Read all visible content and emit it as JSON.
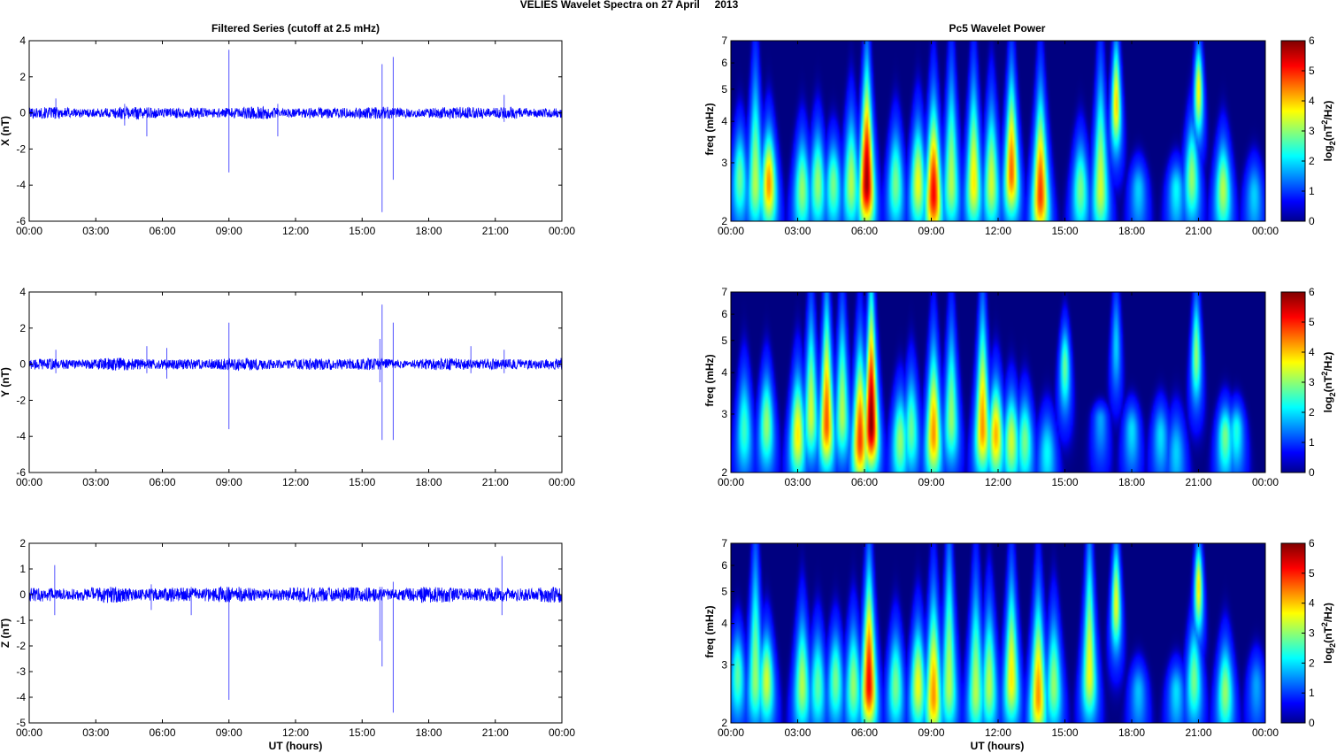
{
  "figure": {
    "suptitle": "VELIES Wavelet Spectra on 27 April     2013",
    "left_title": "Filtered Series (cutoff at 2.5 mHz)",
    "right_title": "Pc5 Wavelet Power",
    "xlabel": "UT (hours)"
  },
  "colors": {
    "trace": "#0000ff",
    "background": "#00008f",
    "colormap": "jet"
  },
  "chart_data": [
    {
      "type": "line",
      "panel": "X",
      "ylabel": "X (nT)",
      "ylim": [
        -6,
        4
      ],
      "yticks": [
        "-6",
        "-4",
        "-2",
        "0",
        "2",
        "4"
      ],
      "xlim": [
        0,
        24
      ],
      "xticks": [
        "00:00",
        "03:00",
        "06:00",
        "09:00",
        "12:00",
        "15:00",
        "18:00",
        "21:00",
        "00:00"
      ],
      "noise_amplitude_nT": 0.2,
      "spikes": [
        {
          "t": 1.2,
          "max": 0.8,
          "min": -0.3
        },
        {
          "t": 4.3,
          "max": 0.5,
          "min": -0.7
        },
        {
          "t": 5.3,
          "max": 0.3,
          "min": -1.3
        },
        {
          "t": 9.0,
          "max": 3.5,
          "min": -3.3
        },
        {
          "t": 11.2,
          "max": 0.5,
          "min": -1.3
        },
        {
          "t": 15.9,
          "max": 2.7,
          "min": -5.5
        },
        {
          "t": 16.4,
          "max": 3.1,
          "min": -3.7
        },
        {
          "t": 21.4,
          "max": 1.0,
          "min": -0.5
        }
      ]
    },
    {
      "type": "line",
      "panel": "Y",
      "ylabel": "Y (nT)",
      "ylim": [
        -6,
        4
      ],
      "yticks": [
        "-6",
        "-4",
        "-2",
        "0",
        "2",
        "4"
      ],
      "xlim": [
        0,
        24
      ],
      "xticks": [
        "00:00",
        "03:00",
        "06:00",
        "09:00",
        "12:00",
        "15:00",
        "18:00",
        "21:00",
        "00:00"
      ],
      "noise_amplitude_nT": 0.2,
      "spikes": [
        {
          "t": 1.2,
          "max": 0.8,
          "min": -0.5
        },
        {
          "t": 5.3,
          "max": 1.0,
          "min": -0.5
        },
        {
          "t": 6.2,
          "max": 0.9,
          "min": -0.8
        },
        {
          "t": 9.0,
          "max": 2.3,
          "min": -3.6
        },
        {
          "t": 15.8,
          "max": 1.4,
          "min": -1.0
        },
        {
          "t": 15.9,
          "max": 3.3,
          "min": -4.2
        },
        {
          "t": 16.4,
          "max": 2.3,
          "min": -4.2
        },
        {
          "t": 19.9,
          "max": 1.0,
          "min": -0.5
        },
        {
          "t": 21.4,
          "max": 0.8,
          "min": -0.5
        }
      ]
    },
    {
      "type": "line",
      "panel": "Z",
      "ylabel": "Z (nT)",
      "ylim": [
        -5,
        2
      ],
      "yticks": [
        "-5",
        "-4",
        "-3",
        "-2",
        "-1",
        "0",
        "1",
        "2"
      ],
      "xlim": [
        0,
        24
      ],
      "xticks": [
        "00:00",
        "03:00",
        "06:00",
        "09:00",
        "12:00",
        "15:00",
        "18:00",
        "21:00",
        "00:00"
      ],
      "noise_amplitude_nT": 0.18,
      "spikes": [
        {
          "t": 1.15,
          "max": 1.15,
          "min": -0.8
        },
        {
          "t": 5.5,
          "max": 0.4,
          "min": -0.6
        },
        {
          "t": 7.3,
          "max": 0.3,
          "min": -0.8
        },
        {
          "t": 9.0,
          "max": 0.3,
          "min": -4.1
        },
        {
          "t": 15.8,
          "max": 0.3,
          "min": -1.8
        },
        {
          "t": 15.9,
          "max": 0.3,
          "min": -2.8
        },
        {
          "t": 16.4,
          "max": 0.5,
          "min": -4.6
        },
        {
          "t": 21.3,
          "max": 1.5,
          "min": -0.8
        }
      ]
    },
    {
      "type": "heatmap",
      "panel": "X",
      "ylabel": "freq (mHz)",
      "yscale": "log",
      "ylim": [
        2,
        7
      ],
      "yticks": [
        "2",
        "3",
        "4",
        "5",
        "6",
        "7"
      ],
      "xlim": [
        0,
        24
      ],
      "xticks": [
        "00:00",
        "03:00",
        "06:00",
        "09:00",
        "12:00",
        "15:00",
        "18:00",
        "21:00",
        "00:00"
      ],
      "colorbar": {
        "label": "log2(nT^2/Hz)",
        "range": [
          0,
          6
        ],
        "ticks": [
          "0",
          "1",
          "2",
          "3",
          "4",
          "5",
          "6"
        ]
      },
      "blobs": [
        {
          "t": 0.4,
          "f": 2.7,
          "p": 2.5,
          "fmax": 3.8
        },
        {
          "t": 1.1,
          "f": 2.6,
          "p": 3.0,
          "fmax": 5.5
        },
        {
          "t": 1.7,
          "f": 2.6,
          "p": 4.2,
          "fmax": 3.8
        },
        {
          "t": 3.2,
          "f": 2.5,
          "p": 2.8,
          "fmax": 3.6
        },
        {
          "t": 3.9,
          "f": 2.6,
          "p": 2.8,
          "fmax": 3.8
        },
        {
          "t": 4.6,
          "f": 2.6,
          "p": 2.6,
          "fmax": 3.5
        },
        {
          "t": 5.4,
          "f": 2.6,
          "p": 3.0,
          "fmax": 4.2
        },
        {
          "t": 6.1,
          "f": 2.6,
          "p": 5.8,
          "fmax": 5.8
        },
        {
          "t": 7.4,
          "f": 2.6,
          "p": 2.6,
          "fmax": 3.8
        },
        {
          "t": 8.4,
          "f": 2.6,
          "p": 3.4,
          "fmax": 4.0
        },
        {
          "t": 9.1,
          "f": 2.4,
          "p": 5.2,
          "fmax": 4.5
        },
        {
          "t": 9.9,
          "f": 2.6,
          "p": 3.0,
          "fmax": 5.5
        },
        {
          "t": 10.9,
          "f": 2.6,
          "p": 3.6,
          "fmax": 5.2
        },
        {
          "t": 11.7,
          "f": 2.6,
          "p": 3.2,
          "fmax": 4.5
        },
        {
          "t": 12.6,
          "f": 2.8,
          "p": 4.5,
          "fmax": 5.5
        },
        {
          "t": 13.9,
          "f": 2.4,
          "p": 4.8,
          "fmax": 4.8
        },
        {
          "t": 15.7,
          "f": 2.5,
          "p": 2.6,
          "fmax": 3.5
        },
        {
          "t": 16.6,
          "f": 2.5,
          "p": 3.2,
          "fmax": 5.5
        },
        {
          "t": 17.3,
          "f": 4.5,
          "p": 3.8,
          "fmax": 7.0
        },
        {
          "t": 18.3,
          "f": 2.5,
          "p": 1.5,
          "fmax": 3.0
        },
        {
          "t": 20.0,
          "f": 2.5,
          "p": 1.8,
          "fmax": 3.0
        },
        {
          "t": 20.7,
          "f": 2.7,
          "p": 2.8,
          "fmax": 4.0
        },
        {
          "t": 21.0,
          "f": 5.0,
          "p": 3.5,
          "fmax": 6.8
        },
        {
          "t": 22.1,
          "f": 2.5,
          "p": 3.0,
          "fmax": 3.5
        },
        {
          "t": 23.5,
          "f": 2.4,
          "p": 1.5,
          "fmax": 3.0
        }
      ]
    },
    {
      "type": "heatmap",
      "panel": "Y",
      "ylabel": "freq (mHz)",
      "yscale": "log",
      "ylim": [
        2,
        7
      ],
      "yticks": [
        "2",
        "3",
        "4",
        "5",
        "6",
        "7"
      ],
      "xlim": [
        0,
        24
      ],
      "xticks": [
        "00:00",
        "03:00",
        "06:00",
        "09:00",
        "12:00",
        "15:00",
        "18:00",
        "21:00",
        "00:00"
      ],
      "colorbar": {
        "label": "log2(nT^2/Hz)",
        "range": [
          0,
          6
        ],
        "ticks": [
          "0",
          "1",
          "2",
          "3",
          "4",
          "5",
          "6"
        ]
      },
      "blobs": [
        {
          "t": 0.6,
          "f": 2.7,
          "p": 2.2,
          "fmax": 4.0
        },
        {
          "t": 1.6,
          "f": 2.8,
          "p": 2.8,
          "fmax": 4.0
        },
        {
          "t": 3.0,
          "f": 2.6,
          "p": 3.6,
          "fmax": 4.0
        },
        {
          "t": 3.6,
          "f": 3.0,
          "p": 3.2,
          "fmax": 6.0
        },
        {
          "t": 4.3,
          "f": 2.8,
          "p": 4.6,
          "fmax": 6.5
        },
        {
          "t": 5.0,
          "f": 3.0,
          "p": 3.0,
          "fmax": 6.0
        },
        {
          "t": 5.8,
          "f": 2.5,
          "p": 4.8,
          "fmax": 4.8
        },
        {
          "t": 6.3,
          "f": 2.8,
          "p": 6.0,
          "fmax": 7.0
        },
        {
          "t": 7.6,
          "f": 2.5,
          "p": 2.8,
          "fmax": 3.5
        },
        {
          "t": 8.1,
          "f": 2.7,
          "p": 2.5,
          "fmax": 4.0
        },
        {
          "t": 9.1,
          "f": 2.6,
          "p": 4.2,
          "fmax": 4.8
        },
        {
          "t": 9.9,
          "f": 2.9,
          "p": 2.8,
          "fmax": 5.5
        },
        {
          "t": 11.3,
          "f": 2.7,
          "p": 4.2,
          "fmax": 6.0
        },
        {
          "t": 11.9,
          "f": 2.6,
          "p": 4.0,
          "fmax": 3.8
        },
        {
          "t": 12.6,
          "f": 2.5,
          "p": 3.2,
          "fmax": 3.5
        },
        {
          "t": 13.2,
          "f": 2.5,
          "p": 2.6,
          "fmax": 3.4
        },
        {
          "t": 14.2,
          "f": 2.3,
          "p": 1.8,
          "fmax": 3.0
        },
        {
          "t": 15.0,
          "f": 4.2,
          "p": 2.5,
          "fmax": 5.5
        },
        {
          "t": 16.6,
          "f": 2.9,
          "p": 1.2,
          "fmax": 3.2
        },
        {
          "t": 17.3,
          "f": 4.8,
          "p": 1.5,
          "fmax": 7.0
        },
        {
          "t": 18.0,
          "f": 2.7,
          "p": 1.6,
          "fmax": 3.2
        },
        {
          "t": 19.3,
          "f": 2.6,
          "p": 1.6,
          "fmax": 3.2
        },
        {
          "t": 20.0,
          "f": 2.3,
          "p": 1.5,
          "fmax": 3.0
        },
        {
          "t": 20.9,
          "f": 4.5,
          "p": 2.8,
          "fmax": 6.8
        },
        {
          "t": 22.2,
          "f": 2.6,
          "p": 2.6,
          "fmax": 3.2
        },
        {
          "t": 22.7,
          "f": 2.7,
          "p": 2.0,
          "fmax": 3.2
        }
      ]
    },
    {
      "type": "heatmap",
      "panel": "Z",
      "ylabel": "freq (mHz)",
      "yscale": "log",
      "ylim": [
        2,
        7
      ],
      "yticks": [
        "2",
        "3",
        "4",
        "5",
        "6",
        "7"
      ],
      "xlim": [
        0,
        24
      ],
      "xticks": [
        "00:00",
        "03:00",
        "06:00",
        "09:00",
        "12:00",
        "15:00",
        "18:00",
        "21:00",
        "00:00"
      ],
      "colorbar": {
        "label": "log2(nT^2/Hz)",
        "range": [
          0,
          6
        ],
        "ticks": [
          "0",
          "1",
          "2",
          "3",
          "4",
          "5",
          "6"
        ]
      },
      "blobs": [
        {
          "t": 0.3,
          "f": 2.8,
          "p": 2.4,
          "fmax": 3.8
        },
        {
          "t": 1.1,
          "f": 2.7,
          "p": 2.8,
          "fmax": 6.5
        },
        {
          "t": 1.6,
          "f": 2.7,
          "p": 3.2,
          "fmax": 3.8
        },
        {
          "t": 3.2,
          "f": 2.6,
          "p": 3.0,
          "fmax": 4.2
        },
        {
          "t": 3.9,
          "f": 2.6,
          "p": 2.4,
          "fmax": 3.8
        },
        {
          "t": 4.7,
          "f": 2.7,
          "p": 2.6,
          "fmax": 3.8
        },
        {
          "t": 5.5,
          "f": 2.6,
          "p": 2.8,
          "fmax": 4.0
        },
        {
          "t": 6.2,
          "f": 2.6,
          "p": 5.2,
          "fmax": 5.8
        },
        {
          "t": 7.4,
          "f": 2.6,
          "p": 2.6,
          "fmax": 3.8
        },
        {
          "t": 8.4,
          "f": 2.6,
          "p": 3.4,
          "fmax": 4.0
        },
        {
          "t": 9.1,
          "f": 2.4,
          "p": 4.2,
          "fmax": 4.8
        },
        {
          "t": 9.8,
          "f": 2.6,
          "p": 3.0,
          "fmax": 6.8
        },
        {
          "t": 11.0,
          "f": 2.5,
          "p": 3.0,
          "fmax": 5.2
        },
        {
          "t": 11.6,
          "f": 2.6,
          "p": 3.0,
          "fmax": 4.5
        },
        {
          "t": 12.6,
          "f": 2.7,
          "p": 3.6,
          "fmax": 5.5
        },
        {
          "t": 13.8,
          "f": 2.4,
          "p": 4.2,
          "fmax": 4.8
        },
        {
          "t": 14.5,
          "f": 2.6,
          "p": 2.8,
          "fmax": 4.2
        },
        {
          "t": 16.1,
          "f": 2.8,
          "p": 3.4,
          "fmax": 7.0
        },
        {
          "t": 17.3,
          "f": 4.6,
          "p": 3.4,
          "fmax": 7.0
        },
        {
          "t": 18.3,
          "f": 2.5,
          "p": 1.4,
          "fmax": 3.0
        },
        {
          "t": 20.0,
          "f": 2.5,
          "p": 1.6,
          "fmax": 3.0
        },
        {
          "t": 20.8,
          "f": 2.7,
          "p": 2.6,
          "fmax": 4.0
        },
        {
          "t": 21.0,
          "f": 5.2,
          "p": 3.6,
          "fmax": 7.0
        },
        {
          "t": 22.2,
          "f": 2.5,
          "p": 2.8,
          "fmax": 3.5
        },
        {
          "t": 23.6,
          "f": 2.6,
          "p": 1.2,
          "fmax": 3.2
        }
      ]
    }
  ]
}
